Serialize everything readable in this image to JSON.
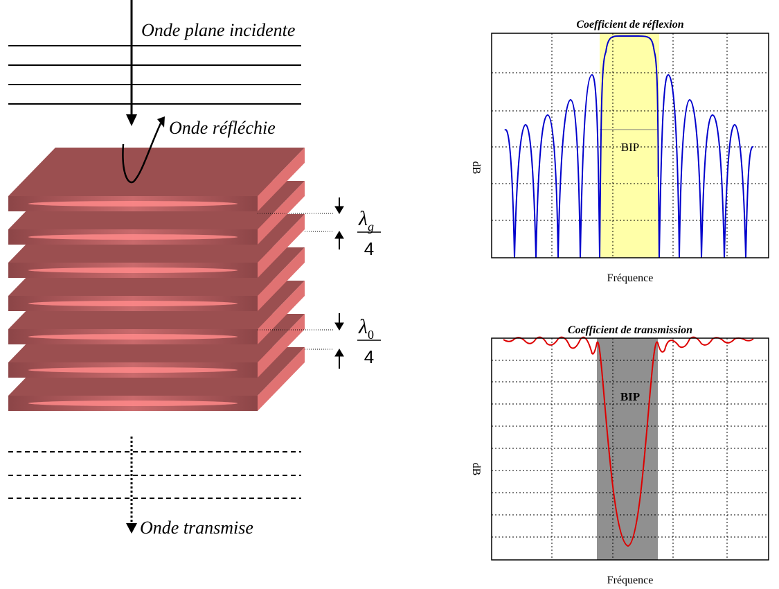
{
  "left": {
    "incident_label": "Onde plane incidente",
    "reflected_label": "Onde réfléchie",
    "transmitted_label": "Onde transmise",
    "lambda_g": {
      "symbol": "λ",
      "subscript": "g",
      "denominator": "4"
    },
    "lambda_0": {
      "symbol": "λ",
      "subscript": "0",
      "denominator": "4"
    }
  },
  "reflection_plot": {
    "title": "Coefficient de réflexion",
    "y_label": "dB",
    "x_label": "Fréquence",
    "band_label": "BIP"
  },
  "transmission_plot": {
    "title": "Coefficient de transmission",
    "y_label": "dB",
    "x_label": "Fréquence",
    "band_label": "BIP"
  }
}
